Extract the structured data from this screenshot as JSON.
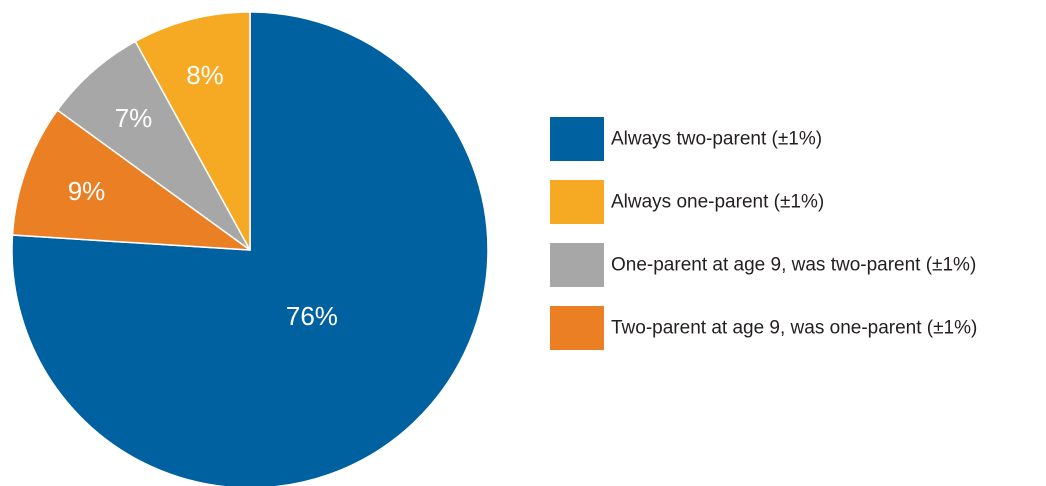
{
  "chart_data": {
    "type": "pie",
    "start": "12 o'clock",
    "direction": "clockwise",
    "slices": [
      {
        "label": "Always two-parent (±1%)",
        "value": 76,
        "value_label": "76%",
        "color": "#0061a0"
      },
      {
        "label": "Two-parent at age 9, was one-parent (±1%)",
        "value": 9,
        "value_label": "9%",
        "color": "#ea7f24"
      },
      {
        "label": "One-parent at age 9, was two-parent (±1%)",
        "value": 7,
        "value_label": "7%",
        "color": "#a7a7a7"
      },
      {
        "label": "Always one-parent (±1%)",
        "value": 8,
        "value_label": "8%",
        "color": "#f6a922"
      }
    ],
    "legend": {
      "position": "right",
      "entries": [
        {
          "label": "Always two-parent (±1%)",
          "color": "#0061a0"
        },
        {
          "label": "Always one-parent (±1%)",
          "color": "#f6a922"
        },
        {
          "label": "One-parent at age 9, was two-parent (±1%)",
          "color": "#a7a7a7"
        },
        {
          "label": "Two-parent at age 9, was one-parent (±1%)",
          "color": "#ea7f24"
        }
      ]
    }
  }
}
